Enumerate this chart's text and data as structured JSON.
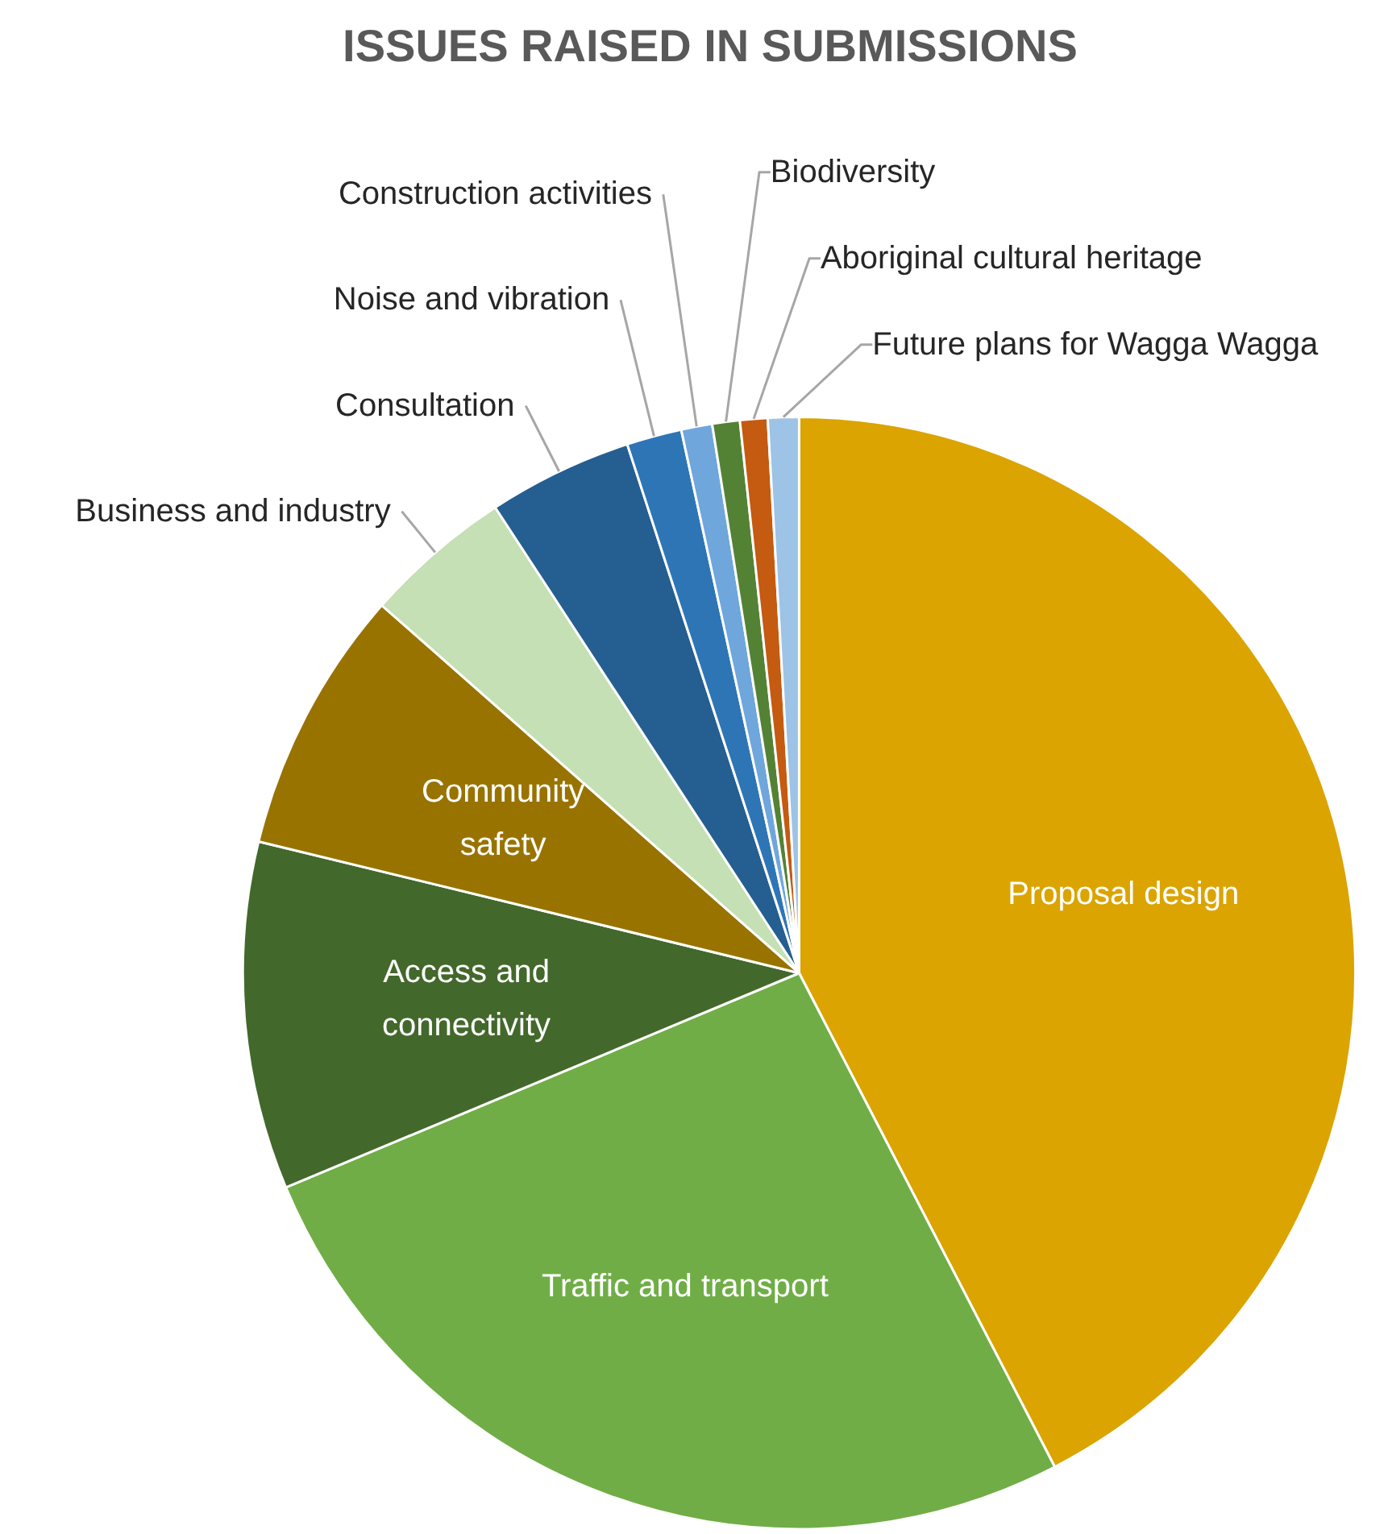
{
  "chart_data": {
    "type": "pie",
    "title": "ISSUES RAISED IN SUBMISSIONS",
    "categories": [
      "Proposal design",
      "Traffic and transport",
      "Access and connectivity",
      "Community safety",
      "Business and industry",
      "Consultation",
      "Noise and vibration",
      "Construction activities",
      "Biodiversity",
      "Aboriginal cultural heritage",
      "Future plans for Wagga Wagga"
    ],
    "values": [
      42.4,
      26.3,
      10.1,
      7.7,
      4.3,
      4.2,
      1.6,
      0.9,
      0.8,
      0.8,
      0.9
    ],
    "colors": [
      "#dba400",
      "#70ad47",
      "#43682b",
      "#997300",
      "#c5e0b4",
      "#255e91",
      "#2e75b6",
      "#6fa6dc",
      "#548235",
      "#c55a11",
      "#9dc3e6"
    ]
  }
}
